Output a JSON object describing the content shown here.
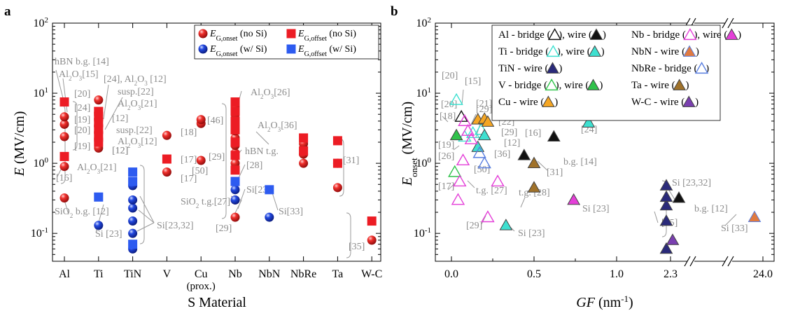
{
  "panels": [
    {
      "label": "a"
    },
    {
      "label": "b"
    }
  ],
  "chart_data": [
    {
      "type": "scatter",
      "xlabel": "S Material",
      "ylabel": "E (MV/cm)",
      "yscale": "log",
      "ylim": [
        0.04,
        100
      ],
      "ytick_labels": [
        "10^-1",
        "10^0",
        "10^1",
        "10^2"
      ],
      "categories": [
        "Al",
        "Ti",
        "TiN",
        "V",
        "Cu",
        "Nb",
        "NbN",
        "NbRe",
        "Ta",
        "W-C"
      ],
      "category_sublabels": {
        "Cu": "(prox.)"
      },
      "legend_position": "top-right",
      "legend": [
        {
          "label": "E_G,onset (no Si)",
          "marker": "circle",
          "color": "#e41a1c"
        },
        {
          "label": "E_G,offset (no Si)",
          "marker": "square",
          "color": "#e41a1c"
        },
        {
          "label": "E_G,onset (w/ Si)",
          "marker": "circle",
          "color": "#1f3fd8"
        },
        {
          "label": "E_G,offset (w/ Si)",
          "marker": "square",
          "color": "#1f3fd8"
        }
      ],
      "series": [
        {
          "name": "E_G,onset (no Si)",
          "points": [
            [
              "Al",
              0.32
            ],
            [
              "Al",
              0.9
            ],
            [
              "Al",
              2.4
            ],
            [
              "Al",
              3.6
            ],
            [
              "Al",
              4.6
            ],
            [
              "Ti",
              1.65
            ],
            [
              "Ti",
              2.1
            ],
            [
              "Ti",
              2.7
            ],
            [
              "Ti",
              3.4
            ],
            [
              "Ti",
              4.3
            ],
            [
              "Ti",
              5.3
            ],
            [
              "Ti",
              8.0
            ],
            [
              "V",
              0.75
            ],
            [
              "V",
              2.5
            ],
            [
              "Cu",
              1.1
            ],
            [
              "Cu",
              3.7
            ],
            [
              "Cu",
              4.2
            ],
            [
              "Nb",
              0.17
            ],
            [
              "Nb",
              0.3
            ],
            [
              "Nb",
              1.0
            ],
            [
              "Nb",
              1.4
            ],
            [
              "Nb",
              1.8
            ],
            [
              "Nb",
              2.3
            ],
            [
              "Nb",
              2.9
            ],
            [
              "Nb",
              3.9
            ],
            [
              "Nb",
              5.0
            ],
            [
              "Nb",
              6.5
            ],
            [
              "NbRe",
              1.0
            ],
            [
              "NbRe",
              1.35
            ],
            [
              "NbRe",
              1.9
            ],
            [
              "Ta",
              0.45
            ],
            [
              "Ta",
              1.0
            ],
            [
              "W-C",
              0.08
            ]
          ]
        },
        {
          "name": "E_G,offset (no Si)",
          "points": [
            [
              "Al",
              1.25
            ],
            [
              "Al",
              7.5
            ],
            [
              "Ti",
              2.0
            ],
            [
              "Ti",
              2.5
            ],
            [
              "Ti",
              3.1
            ],
            [
              "Ti",
              3.8
            ],
            [
              "Ti",
              4.6
            ],
            [
              "Ti",
              5.5
            ],
            [
              "V",
              1.15
            ],
            [
              "Nb",
              0.55
            ],
            [
              "Nb",
              0.8
            ],
            [
              "Nb",
              1.3
            ],
            [
              "Nb",
              2.0
            ],
            [
              "Nb",
              3.0
            ],
            [
              "Nb",
              4.0
            ],
            [
              "Nb",
              5.5
            ],
            [
              "Nb",
              7.5
            ],
            [
              "NbRe",
              1.5
            ],
            [
              "NbRe",
              2.3
            ],
            [
              "Ta",
              1.0
            ],
            [
              "Ta",
              2.1
            ],
            [
              "W-C",
              0.15
            ]
          ]
        },
        {
          "name": "E_G,onset (w/ Si)",
          "points": [
            [
              "Ti",
              0.13
            ],
            [
              "TiN",
              0.06
            ],
            [
              "TiN",
              0.1
            ],
            [
              "TiN",
              0.15
            ],
            [
              "TiN",
              0.23
            ],
            [
              "TiN",
              0.3
            ],
            [
              "TiN",
              0.48
            ],
            [
              "Nb",
              0.3
            ],
            [
              "Nb",
              0.42
            ],
            [
              "NbN",
              0.17
            ]
          ]
        },
        {
          "name": "E_G,offset (w/ Si)",
          "points": [
            [
              "Ti",
              0.33
            ],
            [
              "TiN",
              0.07
            ],
            [
              "TiN",
              0.55
            ],
            [
              "TiN",
              0.75
            ],
            [
              "Nb",
              0.55
            ],
            [
              "NbN",
              0.42
            ]
          ]
        }
      ],
      "annotations": [
        "hBN b.g. [14]",
        "Al2O3[15]",
        "[16]",
        "SiO2 b.g. [12]",
        "[24], Al2O3 [12]",
        "susp.[22]",
        "Al2O3[21]",
        "[20]",
        "[24]",
        "[19]",
        "[12]",
        "[20]",
        "susp.[22]",
        "[12]",
        "Al2O3[12]",
        "[19]",
        "Al2O3[21]",
        "[12]",
        "Si [23]",
        "Si[23,32]",
        "[18]",
        "[17]",
        "[17]",
        "[46]",
        "[50]",
        "Al2O3[26]",
        "[29]",
        "hBN t.g.",
        "[28]",
        "Si[23]",
        "SiO2 t.g.[27]",
        "[29]",
        "Al2O3[36]",
        "Si[33]",
        "[31]",
        "[35]"
      ]
    },
    {
      "type": "scatter",
      "xlabel": "GF (nm^-1)",
      "ylabel": "E_onset (MV/cm)",
      "yscale": "log",
      "ylim": [
        0.04,
        100
      ],
      "ytick_labels": [
        "10^-1",
        "10^0",
        "10^1",
        "10^2"
      ],
      "xtick_labels": [
        "0.0",
        "0.5",
        "1.0",
        "2.3",
        "24.0"
      ],
      "x_axis_breaks": 2,
      "legend_position": "top",
      "legend": [
        {
          "label": "Al - bridge (△), wire (▲)",
          "color": "#111111"
        },
        {
          "label": "Ti - bridge (△), wire (▲)",
          "color": "#3ee0d0"
        },
        {
          "label": "TiN - wire (▲)",
          "color": "#2a2a7a"
        },
        {
          "label": "V - bridge (△), wire (▲)",
          "color": "#2fc24a"
        },
        {
          "label": "Cu - wire (▲)",
          "color": "#f5a623"
        },
        {
          "label": "Nb - bridge (△), wire (▲)",
          "color": "#e43fd8"
        },
        {
          "label": "NbN - wire (▲)",
          "color": "#e07a40"
        },
        {
          "label": "NbRe - bridge (△)",
          "color": "#5a7fe0"
        },
        {
          "label": "Ta - wire (▲)",
          "color": "#a0722a"
        },
        {
          "label": "W-C - wire (▲)",
          "color": "#7a3fb0"
        }
      ],
      "series": [
        {
          "name": "Al",
          "points": [
            {
              "x": 0.06,
              "y": 4.6,
              "type": "bridge"
            },
            {
              "x": 0.44,
              "y": 1.3,
              "type": "wire"
            },
            {
              "x": 0.62,
              "y": 2.4,
              "type": "wire"
            },
            {
              "x": 2.34,
              "y": 0.32,
              "type": "wire"
            }
          ]
        },
        {
          "name": "Ti",
          "points": [
            {
              "x": 0.03,
              "y": 8.0,
              "type": "bridge"
            },
            {
              "x": 0.08,
              "y": 2.4,
              "type": "bridge"
            },
            {
              "x": 0.13,
              "y": 2.7,
              "type": "bridge"
            },
            {
              "x": 0.18,
              "y": 3.0,
              "type": "bridge"
            },
            {
              "x": 0.16,
              "y": 1.7,
              "type": "wire"
            },
            {
              "x": 0.2,
              "y": 2.5,
              "type": "wire"
            },
            {
              "x": 0.33,
              "y": 0.13,
              "type": "wire"
            },
            {
              "x": 0.83,
              "y": 3.8,
              "type": "wire"
            }
          ]
        },
        {
          "name": "TiN",
          "points": [
            {
              "x": 2.28,
              "y": 0.06,
              "type": "wire"
            },
            {
              "x": 2.28,
              "y": 0.15,
              "type": "wire"
            },
            {
              "x": 2.28,
              "y": 0.25,
              "type": "wire"
            },
            {
              "x": 2.28,
              "y": 0.33,
              "type": "wire"
            },
            {
              "x": 2.28,
              "y": 0.48,
              "type": "wire"
            }
          ]
        },
        {
          "name": "V",
          "points": [
            {
              "x": 0.02,
              "y": 0.75,
              "type": "bridge"
            },
            {
              "x": 0.03,
              "y": 2.5,
              "type": "wire"
            }
          ]
        },
        {
          "name": "Cu",
          "points": [
            {
              "x": 0.16,
              "y": 4.2,
              "type": "wire"
            },
            {
              "x": 0.2,
              "y": 4.3,
              "type": "wire"
            },
            {
              "x": 0.22,
              "y": 3.9,
              "type": "wire"
            }
          ]
        },
        {
          "name": "Nb",
          "points": [
            {
              "x": 0.04,
              "y": 0.3,
              "type": "bridge"
            },
            {
              "x": 0.05,
              "y": 0.55,
              "type": "bridge"
            },
            {
              "x": 0.07,
              "y": 1.1,
              "type": "bridge"
            },
            {
              "x": 0.08,
              "y": 4.0,
              "type": "bridge"
            },
            {
              "x": 0.1,
              "y": 2.9,
              "type": "bridge"
            },
            {
              "x": 0.12,
              "y": 2.2,
              "type": "bridge"
            },
            {
              "x": 0.22,
              "y": 0.17,
              "type": "bridge"
            },
            {
              "x": 0.28,
              "y": 0.55,
              "type": "bridge"
            },
            {
              "x": 0.74,
              "y": 0.3,
              "type": "wire"
            }
          ]
        },
        {
          "name": "NbN",
          "points": [
            {
              "x": 23.8,
              "y": 0.17,
              "type": "wire"
            }
          ]
        },
        {
          "name": "NbRe",
          "points": [
            {
              "x": 0.17,
              "y": 1.4,
              "type": "bridge"
            },
            {
              "x": 0.2,
              "y": 1.0,
              "type": "bridge"
            }
          ]
        },
        {
          "name": "Ta",
          "points": [
            {
              "x": 0.5,
              "y": 0.45,
              "type": "wire"
            },
            {
              "x": 0.5,
              "y": 1.0,
              "type": "wire"
            }
          ]
        },
        {
          "name": "W-C",
          "points": [
            {
              "x": 2.31,
              "y": 0.08,
              "type": "wire"
            }
          ]
        }
      ],
      "annotations": [
        "[20]",
        "[15]",
        "[29]",
        "[20]",
        "[21]",
        "[18]",
        "[46]",
        "[22]",
        "[29]",
        "[16]",
        "[12]",
        "[19]",
        "[36]",
        "[26]",
        "[50]",
        "[17]",
        "t.g. [27]",
        "[31]",
        "t.g. [28]",
        "b.g. [14]",
        "[24]",
        "Si [23]",
        "Si [23]",
        "[29]",
        "Si [23,32]",
        "b.g. [12]",
        "[35]",
        "Si [33]"
      ]
    }
  ]
}
